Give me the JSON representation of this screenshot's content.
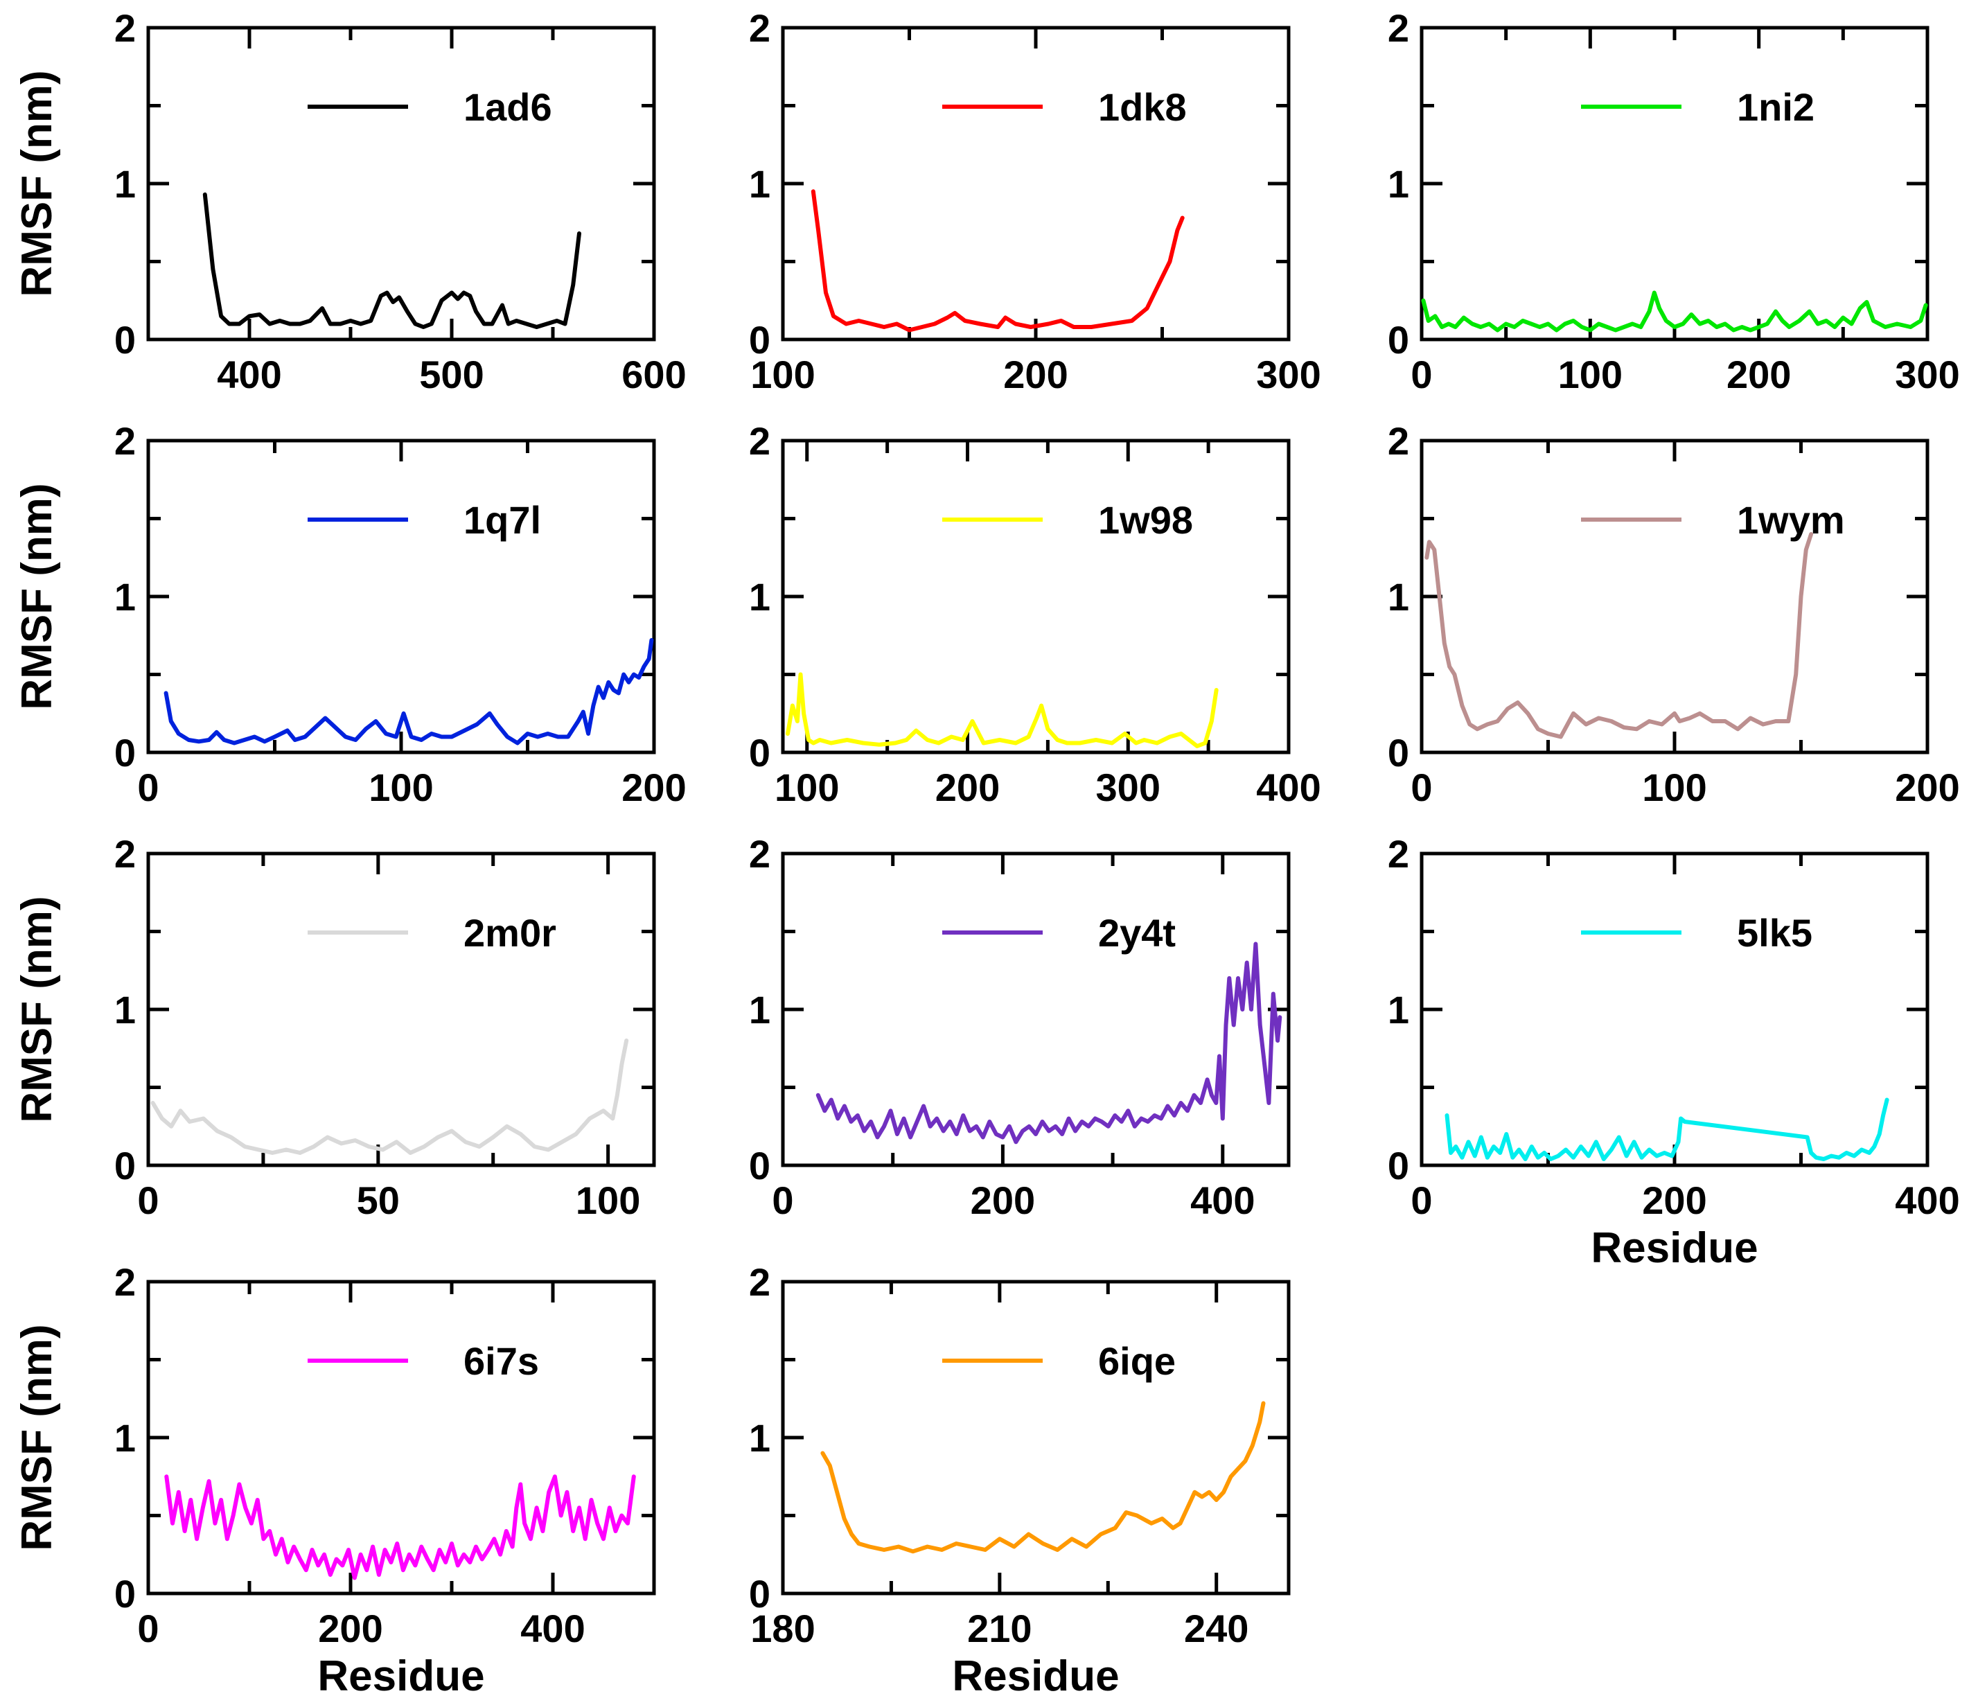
{
  "chart_data": [
    {
      "type": "line",
      "id": "1ad6",
      "legend": "1ad6",
      "color": "#000000",
      "xlim": [
        350,
        600
      ],
      "xticks": [
        400,
        500,
        600
      ],
      "ylim": [
        0,
        2
      ],
      "yticks": [
        0,
        1,
        2
      ],
      "ylabel": "RMSF (nm)",
      "xlabel": "",
      "x": [
        378,
        382,
        386,
        390,
        395,
        400,
        405,
        410,
        415,
        420,
        425,
        430,
        436,
        440,
        445,
        450,
        455,
        460,
        465,
        468,
        471,
        474,
        478,
        482,
        486,
        490,
        495,
        500,
        503,
        506,
        509,
        512,
        516,
        520,
        525,
        528,
        532,
        537,
        542,
        547,
        552,
        556,
        560,
        563
      ],
      "y": [
        0.93,
        0.45,
        0.15,
        0.1,
        0.1,
        0.15,
        0.16,
        0.1,
        0.12,
        0.1,
        0.1,
        0.12,
        0.2,
        0.1,
        0.1,
        0.12,
        0.1,
        0.12,
        0.28,
        0.3,
        0.24,
        0.27,
        0.18,
        0.1,
        0.08,
        0.1,
        0.25,
        0.3,
        0.26,
        0.3,
        0.28,
        0.18,
        0.1,
        0.1,
        0.22,
        0.1,
        0.12,
        0.1,
        0.08,
        0.1,
        0.12,
        0.1,
        0.35,
        0.68
      ]
    },
    {
      "type": "line",
      "id": "1dk8",
      "legend": "1dk8",
      "color": "#ff0000",
      "xlim": [
        100,
        300
      ],
      "xticks": [
        100,
        200,
        300
      ],
      "ylim": [
        0,
        2
      ],
      "yticks": [
        0,
        1,
        2
      ],
      "ylabel": "",
      "xlabel": "",
      "x": [
        112,
        114,
        117,
        120,
        125,
        130,
        135,
        140,
        145,
        150,
        155,
        160,
        165,
        168,
        172,
        178,
        185,
        188,
        192,
        198,
        205,
        210,
        215,
        222,
        230,
        238,
        244,
        247,
        250,
        253,
        256,
        258
      ],
      "y": [
        0.95,
        0.7,
        0.3,
        0.15,
        0.1,
        0.12,
        0.1,
        0.08,
        0.1,
        0.06,
        0.08,
        0.1,
        0.14,
        0.17,
        0.12,
        0.1,
        0.08,
        0.14,
        0.1,
        0.08,
        0.1,
        0.12,
        0.08,
        0.08,
        0.1,
        0.12,
        0.2,
        0.3,
        0.4,
        0.5,
        0.7,
        0.78
      ]
    },
    {
      "type": "line",
      "id": "1ni2",
      "legend": "1ni2",
      "color": "#00e600",
      "xlim": [
        0,
        300
      ],
      "xticks": [
        0,
        100,
        200,
        300
      ],
      "ylim": [
        0,
        2
      ],
      "yticks": [
        0,
        1,
        2
      ],
      "ylabel": "",
      "xlabel": "",
      "x": [
        1,
        4,
        8,
        12,
        16,
        20,
        25,
        30,
        35,
        40,
        45,
        50,
        55,
        60,
        65,
        70,
        75,
        80,
        85,
        90,
        95,
        100,
        105,
        110,
        115,
        120,
        125,
        130,
        135,
        138,
        141,
        145,
        150,
        155,
        160,
        165,
        170,
        175,
        180,
        185,
        190,
        195,
        200,
        205,
        210,
        214,
        218,
        224,
        230,
        235,
        240,
        245,
        250,
        255,
        260,
        264,
        268,
        275,
        282,
        290,
        296,
        299
      ],
      "y": [
        0.25,
        0.12,
        0.15,
        0.08,
        0.1,
        0.08,
        0.14,
        0.1,
        0.08,
        0.1,
        0.06,
        0.1,
        0.08,
        0.12,
        0.1,
        0.08,
        0.1,
        0.06,
        0.1,
        0.12,
        0.08,
        0.06,
        0.1,
        0.08,
        0.06,
        0.08,
        0.1,
        0.08,
        0.18,
        0.3,
        0.2,
        0.12,
        0.08,
        0.1,
        0.16,
        0.1,
        0.12,
        0.08,
        0.1,
        0.06,
        0.08,
        0.06,
        0.08,
        0.1,
        0.18,
        0.12,
        0.08,
        0.12,
        0.18,
        0.1,
        0.12,
        0.08,
        0.14,
        0.1,
        0.2,
        0.24,
        0.12,
        0.08,
        0.1,
        0.08,
        0.12,
        0.22
      ]
    },
    {
      "type": "line",
      "id": "1q7l",
      "legend": "1q7l",
      "color": "#0022dd",
      "xlim": [
        0,
        200
      ],
      "xticks": [
        0,
        100,
        200
      ],
      "ylim": [
        0,
        2
      ],
      "yticks": [
        0,
        1,
        2
      ],
      "ylabel": "RMSF (nm)",
      "xlabel": "",
      "x": [
        7,
        9,
        12,
        16,
        20,
        24,
        27,
        30,
        34,
        38,
        42,
        46,
        50,
        55,
        58,
        62,
        66,
        70,
        74,
        78,
        82,
        86,
        90,
        94,
        98,
        101,
        104,
        108,
        112,
        116,
        120,
        125,
        130,
        135,
        138,
        142,
        146,
        150,
        154,
        158,
        162,
        166,
        170,
        172,
        174,
        176,
        178,
        180,
        182,
        184,
        186,
        188,
        190,
        192,
        194,
        196,
        198,
        199
      ],
      "y": [
        0.38,
        0.2,
        0.12,
        0.08,
        0.07,
        0.08,
        0.13,
        0.08,
        0.06,
        0.08,
        0.1,
        0.07,
        0.1,
        0.14,
        0.08,
        0.1,
        0.16,
        0.22,
        0.16,
        0.1,
        0.08,
        0.15,
        0.2,
        0.12,
        0.1,
        0.25,
        0.1,
        0.08,
        0.12,
        0.1,
        0.1,
        0.14,
        0.18,
        0.25,
        0.18,
        0.1,
        0.06,
        0.12,
        0.1,
        0.12,
        0.1,
        0.1,
        0.2,
        0.26,
        0.12,
        0.3,
        0.42,
        0.35,
        0.45,
        0.4,
        0.38,
        0.5,
        0.45,
        0.5,
        0.48,
        0.55,
        0.6,
        0.72
      ]
    },
    {
      "type": "line",
      "id": "1w98",
      "legend": "1w98",
      "color": "#ffff00",
      "xlim": [
        85,
        400
      ],
      "xticks": [
        100,
        200,
        300,
        400
      ],
      "ylim": [
        0,
        2
      ],
      "yticks": [
        0,
        1,
        2
      ],
      "ylabel": "",
      "xlabel": "",
      "x": [
        88,
        91,
        94,
        96,
        98,
        101,
        104,
        108,
        115,
        125,
        135,
        145,
        155,
        162,
        168,
        175,
        182,
        190,
        197,
        203,
        210,
        220,
        230,
        238,
        243,
        246,
        250,
        256,
        262,
        270,
        280,
        290,
        298,
        305,
        310,
        318,
        326,
        333,
        338,
        343,
        348,
        352,
        355
      ],
      "y": [
        0.12,
        0.3,
        0.2,
        0.5,
        0.25,
        0.08,
        0.06,
        0.08,
        0.06,
        0.08,
        0.06,
        0.05,
        0.06,
        0.08,
        0.14,
        0.08,
        0.06,
        0.1,
        0.08,
        0.2,
        0.06,
        0.08,
        0.06,
        0.1,
        0.22,
        0.3,
        0.15,
        0.08,
        0.06,
        0.06,
        0.08,
        0.06,
        0.12,
        0.06,
        0.08,
        0.06,
        0.1,
        0.12,
        0.08,
        0.04,
        0.06,
        0.2,
        0.4
      ]
    },
    {
      "type": "line",
      "id": "1wym",
      "legend": "1wym",
      "color": "#bc8f8f",
      "xlim": [
        0,
        200
      ],
      "xticks": [
        0,
        100,
        200
      ],
      "ylim": [
        0,
        2
      ],
      "yticks": [
        0,
        1,
        2
      ],
      "ylabel": "",
      "xlabel": "",
      "x": [
        2,
        3,
        5,
        7,
        9,
        11,
        13,
        16,
        19,
        22,
        26,
        30,
        34,
        38,
        42,
        46,
        50,
        55,
        60,
        65,
        70,
        75,
        80,
        85,
        90,
        95,
        100,
        102,
        106,
        110,
        115,
        120,
        125,
        130,
        135,
        140,
        145,
        148,
        150,
        152,
        154
      ],
      "y": [
        1.25,
        1.35,
        1.3,
        1.0,
        0.7,
        0.55,
        0.5,
        0.3,
        0.18,
        0.15,
        0.18,
        0.2,
        0.28,
        0.32,
        0.25,
        0.15,
        0.12,
        0.1,
        0.25,
        0.18,
        0.22,
        0.2,
        0.16,
        0.15,
        0.2,
        0.18,
        0.25,
        0.2,
        0.22,
        0.25,
        0.2,
        0.2,
        0.15,
        0.22,
        0.18,
        0.2,
        0.2,
        0.5,
        1.0,
        1.3,
        1.4
      ]
    },
    {
      "type": "line",
      "id": "2m0r",
      "legend": "2m0r",
      "color": "#d9d9d9",
      "xlim": [
        0,
        110
      ],
      "xticks": [
        0,
        50,
        100
      ],
      "ylim": [
        0,
        2
      ],
      "yticks": [
        0,
        1,
        2
      ],
      "ylabel": "RMSF (nm)",
      "xlabel": "",
      "x": [
        1,
        3,
        5,
        7,
        9,
        12,
        15,
        18,
        21,
        24,
        27,
        30,
        33,
        36,
        39,
        42,
        45,
        48,
        51,
        54,
        57,
        60,
        63,
        66,
        69,
        72,
        75,
        78,
        81,
        84,
        87,
        90,
        93,
        96,
        99,
        101,
        102,
        103,
        104
      ],
      "y": [
        0.4,
        0.3,
        0.25,
        0.35,
        0.28,
        0.3,
        0.22,
        0.18,
        0.12,
        0.1,
        0.08,
        0.1,
        0.08,
        0.12,
        0.18,
        0.14,
        0.16,
        0.12,
        0.1,
        0.15,
        0.08,
        0.12,
        0.18,
        0.22,
        0.15,
        0.12,
        0.18,
        0.25,
        0.2,
        0.12,
        0.1,
        0.15,
        0.2,
        0.3,
        0.35,
        0.3,
        0.45,
        0.65,
        0.8
      ]
    },
    {
      "type": "line",
      "id": "2y4t",
      "legend": "2y4t",
      "color": "#7030c0",
      "xlim": [
        0,
        460
      ],
      "xticks": [
        0,
        200,
        400
      ],
      "ylim": [
        0,
        2
      ],
      "yticks": [
        0,
        1,
        2
      ],
      "ylabel": "",
      "xlabel": "",
      "x": [
        32,
        38,
        44,
        50,
        56,
        62,
        68,
        74,
        80,
        86,
        92,
        98,
        104,
        110,
        116,
        122,
        128,
        134,
        140,
        146,
        152,
        158,
        164,
        170,
        176,
        182,
        188,
        194,
        200,
        206,
        212,
        218,
        224,
        230,
        236,
        242,
        248,
        254,
        260,
        266,
        272,
        278,
        284,
        290,
        296,
        302,
        308,
        314,
        320,
        326,
        332,
        338,
        344,
        350,
        356,
        362,
        368,
        374,
        380,
        386,
        390,
        394,
        397,
        400,
        403,
        406,
        410,
        414,
        418,
        422,
        426,
        430,
        434,
        438,
        442,
        446,
        450,
        452
      ],
      "y": [
        0.45,
        0.35,
        0.42,
        0.3,
        0.38,
        0.28,
        0.32,
        0.22,
        0.28,
        0.18,
        0.25,
        0.35,
        0.2,
        0.3,
        0.18,
        0.28,
        0.38,
        0.25,
        0.3,
        0.22,
        0.28,
        0.2,
        0.32,
        0.22,
        0.25,
        0.18,
        0.28,
        0.2,
        0.18,
        0.25,
        0.15,
        0.22,
        0.25,
        0.2,
        0.28,
        0.22,
        0.25,
        0.2,
        0.3,
        0.22,
        0.28,
        0.25,
        0.3,
        0.28,
        0.25,
        0.32,
        0.28,
        0.35,
        0.25,
        0.3,
        0.28,
        0.32,
        0.3,
        0.38,
        0.32,
        0.4,
        0.35,
        0.45,
        0.4,
        0.55,
        0.45,
        0.4,
        0.7,
        0.3,
        0.9,
        1.2,
        0.9,
        1.2,
        1.0,
        1.3,
        1.0,
        1.42,
        0.9,
        0.65,
        0.4,
        1.1,
        0.8,
        0.95
      ]
    },
    {
      "type": "line",
      "id": "5lk5",
      "legend": "5lk5",
      "color": "#00eeee",
      "xlim": [
        0,
        400
      ],
      "xticks": [
        0,
        200,
        400
      ],
      "ylim": [
        0,
        2
      ],
      "yticks": [
        0,
        1,
        2
      ],
      "ylabel": "",
      "xlabel": "Residue",
      "x": [
        20,
        23,
        27,
        32,
        37,
        42,
        47,
        52,
        57,
        62,
        67,
        72,
        77,
        82,
        87,
        92,
        97,
        102,
        108,
        114,
        120,
        126,
        132,
        138,
        144,
        150,
        156,
        162,
        168,
        174,
        180,
        186,
        192,
        198,
        203,
        205,
        208,
        305,
        308,
        312,
        318,
        324,
        330,
        336,
        342,
        348,
        354,
        358,
        362,
        365,
        368
      ],
      "y": [
        0.32,
        0.08,
        0.12,
        0.05,
        0.15,
        0.06,
        0.18,
        0.05,
        0.12,
        0.08,
        0.2,
        0.05,
        0.1,
        0.04,
        0.12,
        0.05,
        0.08,
        0.04,
        0.06,
        0.1,
        0.05,
        0.12,
        0.06,
        0.15,
        0.04,
        0.1,
        0.18,
        0.06,
        0.15,
        0.05,
        0.1,
        0.06,
        0.08,
        0.06,
        0.15,
        0.3,
        0.28,
        0.18,
        0.08,
        0.05,
        0.04,
        0.06,
        0.05,
        0.08,
        0.06,
        0.1,
        0.08,
        0.12,
        0.2,
        0.32,
        0.42
      ]
    },
    {
      "type": "line",
      "id": "6i7s",
      "legend": "6i7s",
      "color": "#ff00ff",
      "xlim": [
        0,
        500
      ],
      "xticks": [
        0,
        200,
        400
      ],
      "ylim": [
        0,
        2
      ],
      "yticks": [
        0,
        1,
        2
      ],
      "ylabel": "RMSF (nm)",
      "xlabel": "Residue",
      "x": [
        18,
        24,
        30,
        36,
        42,
        48,
        54,
        60,
        66,
        72,
        78,
        84,
        90,
        96,
        102,
        108,
        114,
        120,
        126,
        132,
        138,
        144,
        150,
        156,
        162,
        168,
        174,
        180,
        186,
        192,
        198,
        204,
        210,
        216,
        222,
        228,
        234,
        240,
        246,
        252,
        258,
        264,
        270,
        276,
        282,
        288,
        294,
        300,
        306,
        312,
        318,
        324,
        330,
        336,
        342,
        348,
        354,
        360,
        364,
        368,
        372,
        378,
        384,
        390,
        396,
        402,
        408,
        414,
        420,
        426,
        432,
        438,
        444,
        450,
        456,
        462,
        468,
        474,
        480
      ],
      "y": [
        0.75,
        0.45,
        0.65,
        0.4,
        0.6,
        0.35,
        0.55,
        0.72,
        0.45,
        0.6,
        0.35,
        0.5,
        0.7,
        0.55,
        0.45,
        0.6,
        0.35,
        0.4,
        0.25,
        0.35,
        0.2,
        0.3,
        0.22,
        0.15,
        0.28,
        0.18,
        0.25,
        0.12,
        0.22,
        0.18,
        0.28,
        0.1,
        0.25,
        0.15,
        0.3,
        0.12,
        0.28,
        0.2,
        0.32,
        0.15,
        0.25,
        0.18,
        0.3,
        0.22,
        0.15,
        0.28,
        0.2,
        0.32,
        0.18,
        0.25,
        0.2,
        0.3,
        0.22,
        0.28,
        0.35,
        0.25,
        0.4,
        0.3,
        0.55,
        0.7,
        0.45,
        0.35,
        0.55,
        0.4,
        0.65,
        0.75,
        0.5,
        0.65,
        0.4,
        0.55,
        0.35,
        0.6,
        0.45,
        0.35,
        0.55,
        0.4,
        0.5,
        0.45,
        0.75
      ]
    },
    {
      "type": "line",
      "id": "6iqe",
      "legend": "6iqe",
      "color": "#ff9900",
      "xlim": [
        180,
        250
      ],
      "xticks": [
        180,
        210,
        240
      ],
      "ylim": [
        0,
        2
      ],
      "yticks": [
        0,
        1,
        2
      ],
      "ylabel": "",
      "xlabel": "Residue",
      "x": [
        185.5,
        186.5,
        187.5,
        188.5,
        189.5,
        190.5,
        192,
        194,
        196,
        198,
        200,
        202,
        204,
        206,
        208,
        210,
        212,
        214,
        216,
        218,
        220,
        222,
        224,
        226,
        227.5,
        229,
        231,
        232.5,
        234,
        235,
        236,
        237,
        238,
        239,
        240,
        241,
        242,
        243,
        244,
        245,
        246,
        246.5
      ],
      "y": [
        0.9,
        0.82,
        0.65,
        0.48,
        0.38,
        0.32,
        0.3,
        0.28,
        0.3,
        0.27,
        0.3,
        0.28,
        0.32,
        0.3,
        0.28,
        0.35,
        0.3,
        0.38,
        0.32,
        0.28,
        0.35,
        0.3,
        0.38,
        0.42,
        0.52,
        0.5,
        0.45,
        0.48,
        0.42,
        0.45,
        0.55,
        0.65,
        0.62,
        0.65,
        0.6,
        0.65,
        0.75,
        0.8,
        0.85,
        0.95,
        1.1,
        1.22
      ]
    }
  ]
}
